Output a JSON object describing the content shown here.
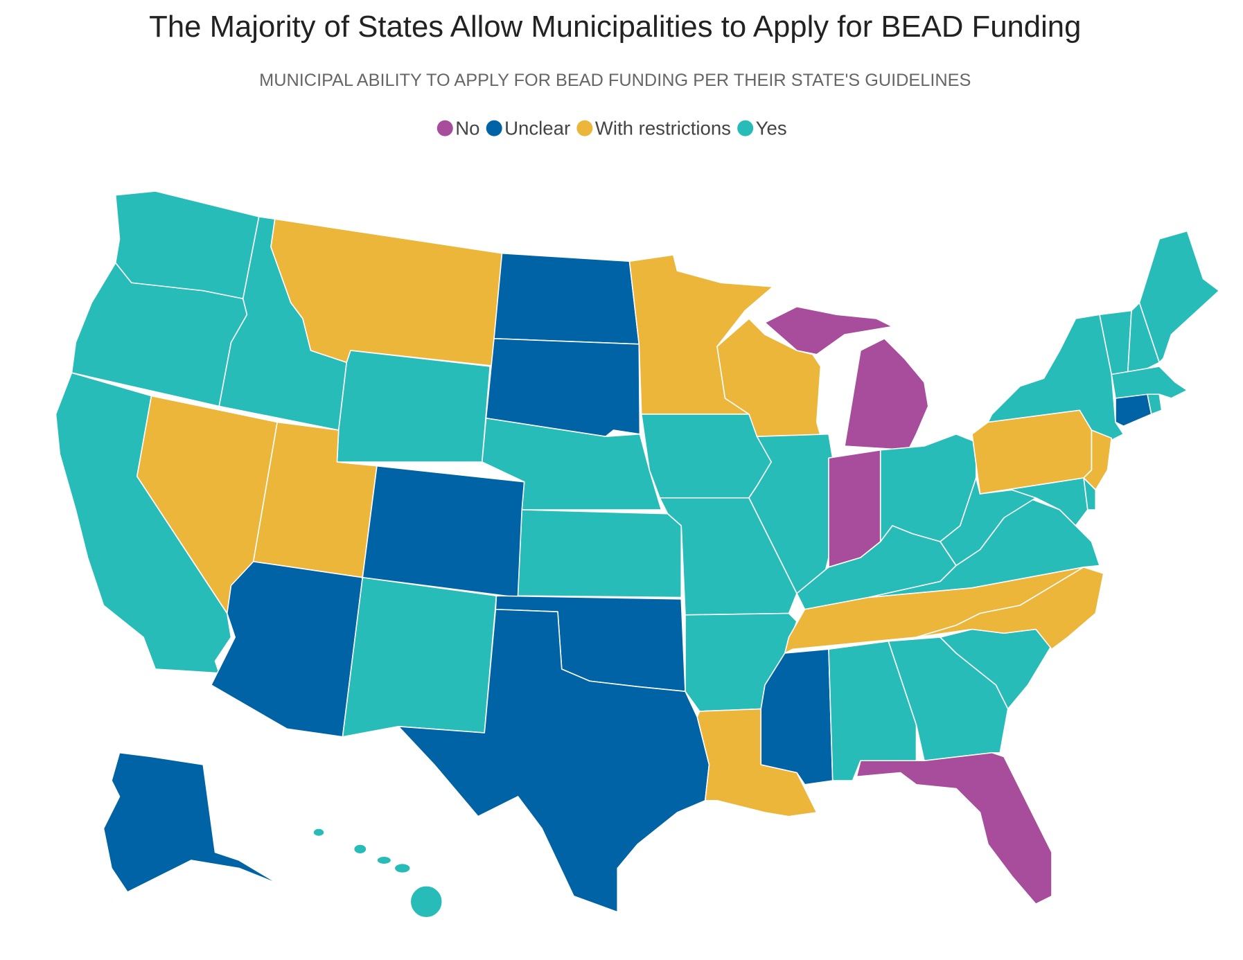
{
  "chart_data": {
    "type": "choropleth",
    "title": "The Majority of States Allow Municipalities to Apply for BEAD Funding",
    "subtitle": "MUNICIPAL ABILITY TO APPLY FOR BEAD FUNDING PER THEIR STATE'S GUIDELINES",
    "categories": [
      "No",
      "Unclear",
      "With restrictions",
      "Yes"
    ],
    "colors": [
      "#a84c9c",
      "#0063a6",
      "#ecb63a",
      "#28bcb8"
    ]
  }
}
